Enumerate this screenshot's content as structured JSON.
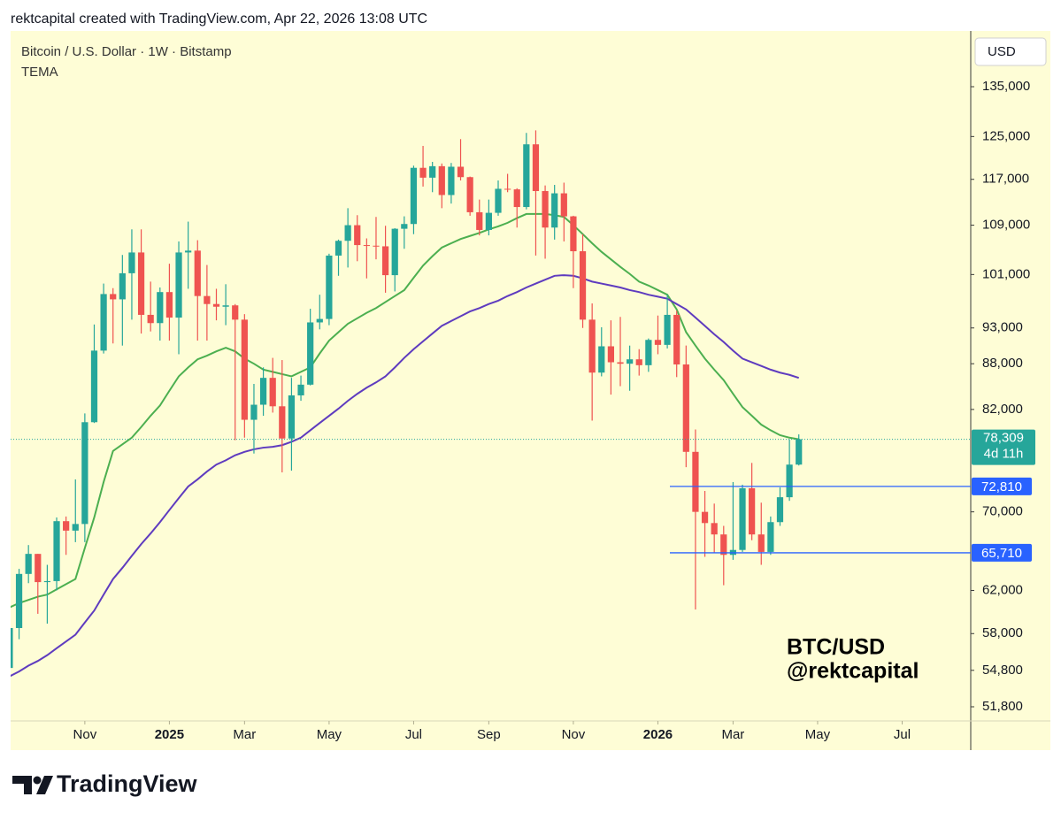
{
  "header": "rektcapital created with TradingView.com, Apr 22, 2026 13:08 UTC",
  "brand": "TradingView",
  "chart_data": {
    "type": "candlestick",
    "title": "Bitcoin / U.S. Dollar · 1W · Bitstamp",
    "indicator": "TEMA",
    "currency": "USD",
    "log_scale": true,
    "grid": false,
    "up_color": "#26a69a",
    "down_color": "#ef5350",
    "x": [
      0,
      1,
      2,
      3,
      4,
      5,
      6,
      7,
      8,
      9,
      10,
      11,
      12,
      13,
      14,
      15,
      16,
      17,
      18,
      19,
      20,
      21,
      22,
      23,
      24,
      25,
      26,
      27,
      28,
      29,
      30,
      31,
      32,
      33,
      34,
      35,
      36,
      37,
      38,
      39,
      40,
      41,
      42,
      43,
      44,
      45,
      46,
      47,
      48,
      49,
      50,
      51,
      52,
      53,
      54,
      55,
      56,
      57,
      58,
      59,
      60,
      61,
      62,
      63,
      64,
      65,
      66,
      67,
      68,
      69,
      70,
      71,
      72,
      73,
      74,
      75,
      76,
      77,
      78,
      79,
      80,
      81,
      82,
      83,
      84
    ],
    "open": [
      55000,
      58500,
      63600,
      65600,
      62800,
      62900,
      69000,
      68000,
      68700,
      80400,
      89800,
      98000,
      97200,
      101200,
      104500,
      94900,
      93700,
      98300,
      94500,
      104500,
      104800,
      97700,
      96500,
      96100,
      96300,
      94200,
      80700,
      82600,
      86100,
      82400,
      78400,
      83800,
      85200,
      93800,
      94300,
      104000,
      106400,
      109000,
      105700,
      105600,
      105500,
      100900,
      108400,
      109200,
      119100,
      117300,
      119400,
      114200,
      119300,
      117400,
      111200,
      108200,
      111100,
      115300,
      115200,
      112100,
      123500,
      114900,
      108600,
      114500,
      110500,
      104700,
      94200,
      86800,
      90400,
      88200,
      88000,
      88600,
      87800,
      91300,
      90600,
      94900,
      87900,
      76800,
      70000,
      68800,
      67600,
      65500,
      66000,
      72600,
      67600,
      65800,
      68900,
      71600,
      75300
    ],
    "high": [
      59000,
      64100,
      66500,
      65600,
      64500,
      69400,
      69500,
      73600,
      81500,
      93500,
      99600,
      98900,
      104100,
      108300,
      108300,
      99900,
      99000,
      102700,
      106300,
      109600,
      106500,
      102500,
      98800,
      99500,
      96500,
      95000,
      85300,
      87500,
      88800,
      88500,
      86100,
      86400,
      95800,
      97900,
      104300,
      106600,
      111900,
      110700,
      106800,
      110400,
      108900,
      108500,
      110500,
      119500,
      123200,
      120200,
      119900,
      120000,
      124500,
      117500,
      113400,
      113400,
      116800,
      118000,
      115400,
      125700,
      126200,
      115900,
      116000,
      116400,
      110600,
      107500,
      96600,
      93100,
      94100,
      94600,
      90500,
      90000,
      91500,
      94800,
      97900,
      95500,
      90500,
      79500,
      72300,
      70900,
      68500,
      73300,
      73000,
      75500,
      71000,
      69500,
      72700,
      78300,
      78900
    ],
    "low": [
      54600,
      57500,
      62700,
      59800,
      58900,
      62000,
      65500,
      66800,
      66800,
      80300,
      89400,
      90800,
      90500,
      94200,
      92200,
      92500,
      91200,
      91200,
      89300,
      98800,
      91200,
      91200,
      94100,
      93400,
      78200,
      78500,
      76600,
      81200,
      81600,
      74400,
      74600,
      83100,
      85100,
      92800,
      93400,
      100800,
      102100,
      103100,
      100400,
      103400,
      98200,
      98400,
      105100,
      107500,
      115700,
      114700,
      111900,
      112700,
      116800,
      110600,
      107300,
      107300,
      110600,
      114700,
      108600,
      111700,
      104000,
      103500,
      106600,
      106300,
      98900,
      93000,
      80600,
      86300,
      83900,
      85000,
      84400,
      86400,
      86900,
      89300,
      90100,
      86200,
      75000,
      60200,
      65300,
      65700,
      62500,
      65000,
      65800,
      67000,
      64500,
      65500,
      68500,
      71200,
      75200
    ],
    "close": [
      58500,
      63600,
      65600,
      62800,
      62900,
      69000,
      68000,
      68700,
      80400,
      89800,
      98000,
      97200,
      101200,
      104500,
      94900,
      93700,
      98300,
      94500,
      104500,
      104800,
      97700,
      96500,
      96100,
      96300,
      94200,
      80700,
      82600,
      86100,
      82400,
      78400,
      83800,
      85200,
      93800,
      94300,
      104000,
      106400,
      109000,
      105700,
      105600,
      105500,
      100900,
      108400,
      109200,
      119100,
      117300,
      119400,
      114200,
      119300,
      117400,
      111200,
      108200,
      111100,
      115300,
      115200,
      112100,
      123500,
      114900,
      108600,
      114500,
      110500,
      104700,
      94200,
      86800,
      90400,
      88200,
      88000,
      88600,
      87800,
      91300,
      90600,
      94900,
      87900,
      76800,
      70000,
      68800,
      67600,
      65500,
      66000,
      72600,
      67600,
      65800,
      68900,
      71600,
      75300,
      78309
    ],
    "lines": [
      {
        "color": "#4caf50",
        "values": [
          60400,
          60800,
          61100,
          61400,
          61600,
          62100,
          62600,
          63100,
          66200,
          69400,
          73300,
          76900,
          77700,
          78500,
          79800,
          81200,
          82500,
          84400,
          86300,
          87500,
          88600,
          89100,
          89700,
          90200,
          89700,
          88700,
          88000,
          87200,
          86900,
          86600,
          86300,
          86900,
          87500,
          89400,
          91200,
          92400,
          93600,
          94400,
          95200,
          95900,
          96800,
          97700,
          98600,
          100500,
          102400,
          103900,
          105300,
          106000,
          106700,
          107200,
          107700,
          108300,
          108800,
          109400,
          110200,
          110900,
          110900,
          110900,
          110700,
          110400,
          109000,
          107500,
          106000,
          104600,
          103400,
          102200,
          101100,
          99900,
          99300,
          98600,
          97900,
          95700,
          92400,
          90500,
          88700,
          87200,
          85800,
          84000,
          82300,
          81200,
          80100,
          79400,
          78800,
          78500,
          78300
        ]
      },
      {
        "color": "#5e3bbf",
        "values": [
          54300,
          54700,
          55200,
          55600,
          56100,
          56700,
          57300,
          57900,
          59000,
          60100,
          61600,
          63100,
          64200,
          65400,
          66600,
          67700,
          68900,
          70200,
          71500,
          72800,
          73600,
          74500,
          75300,
          75800,
          76400,
          76800,
          77100,
          77300,
          77400,
          77600,
          78000,
          78500,
          79400,
          80300,
          81200,
          82100,
          83100,
          84000,
          84800,
          85500,
          86300,
          87500,
          88800,
          90000,
          91100,
          92200,
          93300,
          94000,
          94700,
          95400,
          95900,
          96500,
          97000,
          97700,
          98300,
          99000,
          99600,
          100200,
          100800,
          100900,
          100800,
          100400,
          99900,
          99600,
          99300,
          99000,
          98600,
          98300,
          97900,
          97600,
          97300,
          96500,
          95700,
          94500,
          93300,
          92100,
          91000,
          89800,
          88700,
          88200,
          87700,
          87200,
          86800,
          86500,
          86100
        ]
      }
    ],
    "xlim": [
      0.1,
      102.3
    ],
    "xticks": [
      {
        "value": 8,
        "label": "Nov"
      },
      {
        "value": 17,
        "label": "2025",
        "bold": true
      },
      {
        "value": 25,
        "label": "Mar"
      },
      {
        "value": 34,
        "label": "May"
      },
      {
        "value": 43,
        "label": "Jul"
      },
      {
        "value": 51,
        "label": "Sep"
      },
      {
        "value": 60,
        "label": "Nov"
      },
      {
        "value": 69,
        "label": "2026",
        "bold": true
      },
      {
        "value": 77,
        "label": "Mar"
      },
      {
        "value": 86,
        "label": "May"
      },
      {
        "value": 95,
        "label": "Jul"
      }
    ],
    "ylim": [
      50680,
      147140
    ],
    "yticks": [
      {
        "value": 51800,
        "label": "51,800"
      },
      {
        "value": 54800,
        "label": "54,800"
      },
      {
        "value": 58000,
        "label": "58,000"
      },
      {
        "value": 62000,
        "label": "62,000"
      },
      {
        "value": 70000,
        "label": "70,000"
      },
      {
        "value": 82000,
        "label": "82,000"
      },
      {
        "value": 88000,
        "label": "88,000"
      },
      {
        "value": 93000,
        "label": "93,000"
      },
      {
        "value": 101000,
        "label": "101,000"
      },
      {
        "value": 109000,
        "label": "109,000"
      },
      {
        "value": 117000,
        "label": "117,000"
      },
      {
        "value": 125000,
        "label": "125,000"
      },
      {
        "value": 135000,
        "label": "135,000"
      }
    ],
    "price_lines": [
      {
        "value": 72810,
        "label": "72,810",
        "color": "#2962ff"
      },
      {
        "value": 65710,
        "label": "65,710",
        "color": "#2962ff"
      }
    ],
    "last_price": {
      "value": 78309,
      "label": "78,309",
      "countdown": "4d 11h",
      "color": "#26a69a"
    },
    "annotations": [
      "BTC/USD",
      "@rektcapital"
    ]
  }
}
